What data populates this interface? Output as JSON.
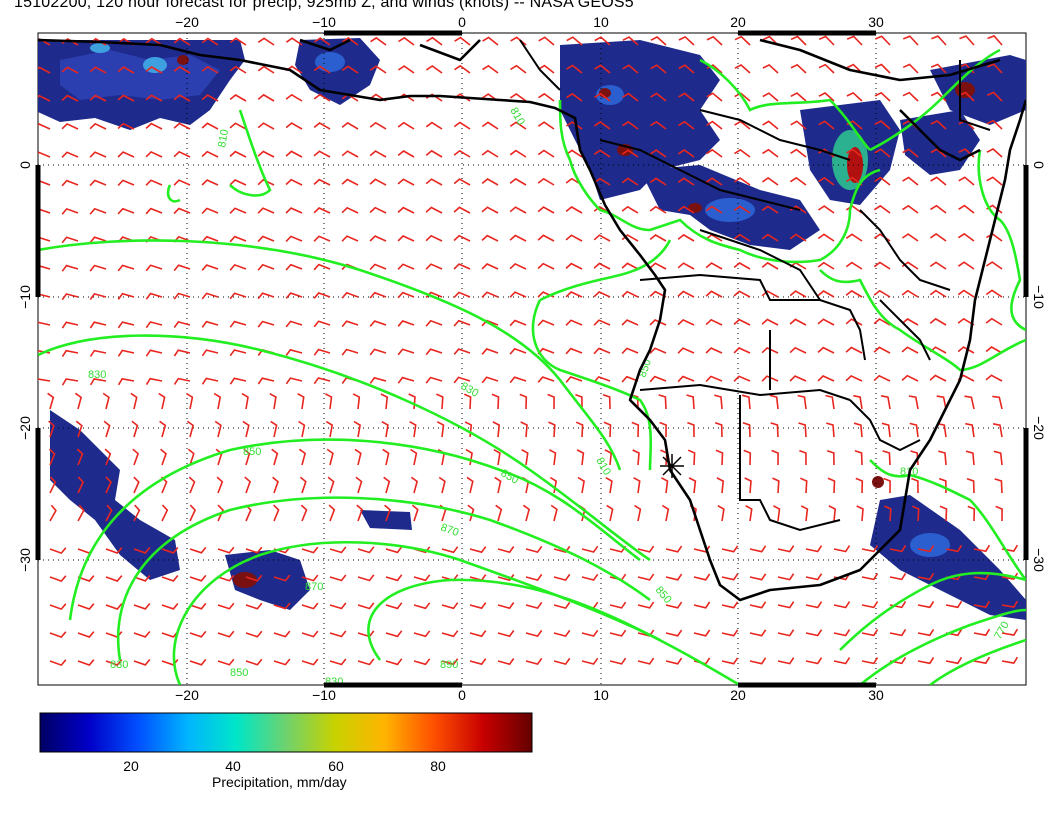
{
  "title": "15102200, 120 hour forecast for precip, 925mb Z, and winds (knots) -- NASA GEOS5",
  "map": {
    "lon_ticks": [
      "−20",
      "−10",
      "0",
      "10",
      "20",
      "30"
    ],
    "lat_ticks": [
      "0",
      "−10",
      "−20",
      "−30"
    ],
    "lon_range": [
      -30,
      40
    ],
    "lat_range": [
      -40,
      10
    ],
    "contour_labels": [
      "810",
      "830",
      "850",
      "870",
      "830",
      "850",
      "870",
      "850",
      "830",
      "810",
      "890",
      "850",
      "810",
      "770",
      "830",
      "810",
      "850"
    ],
    "colors": {
      "precip_low": "#1a237e",
      "precip_mid": "#00e5cc",
      "precip_high": "#7f0000",
      "contours": "#22ee22",
      "wind_barbs": "#ee2222",
      "coast": "#000000"
    }
  },
  "colorbar": {
    "title": "Precipitation, mm/day",
    "tick_labels": [
      "20",
      "40",
      "60",
      "80"
    ],
    "tick_values": [
      20,
      40,
      60,
      80
    ],
    "range": [
      0,
      100
    ],
    "palette": [
      "#000064",
      "#0000c8",
      "#0050ff",
      "#00b4ff",
      "#00e6c8",
      "#6ed26e",
      "#c8d200",
      "#ffb400",
      "#ff5000",
      "#c80000",
      "#640000"
    ]
  }
}
